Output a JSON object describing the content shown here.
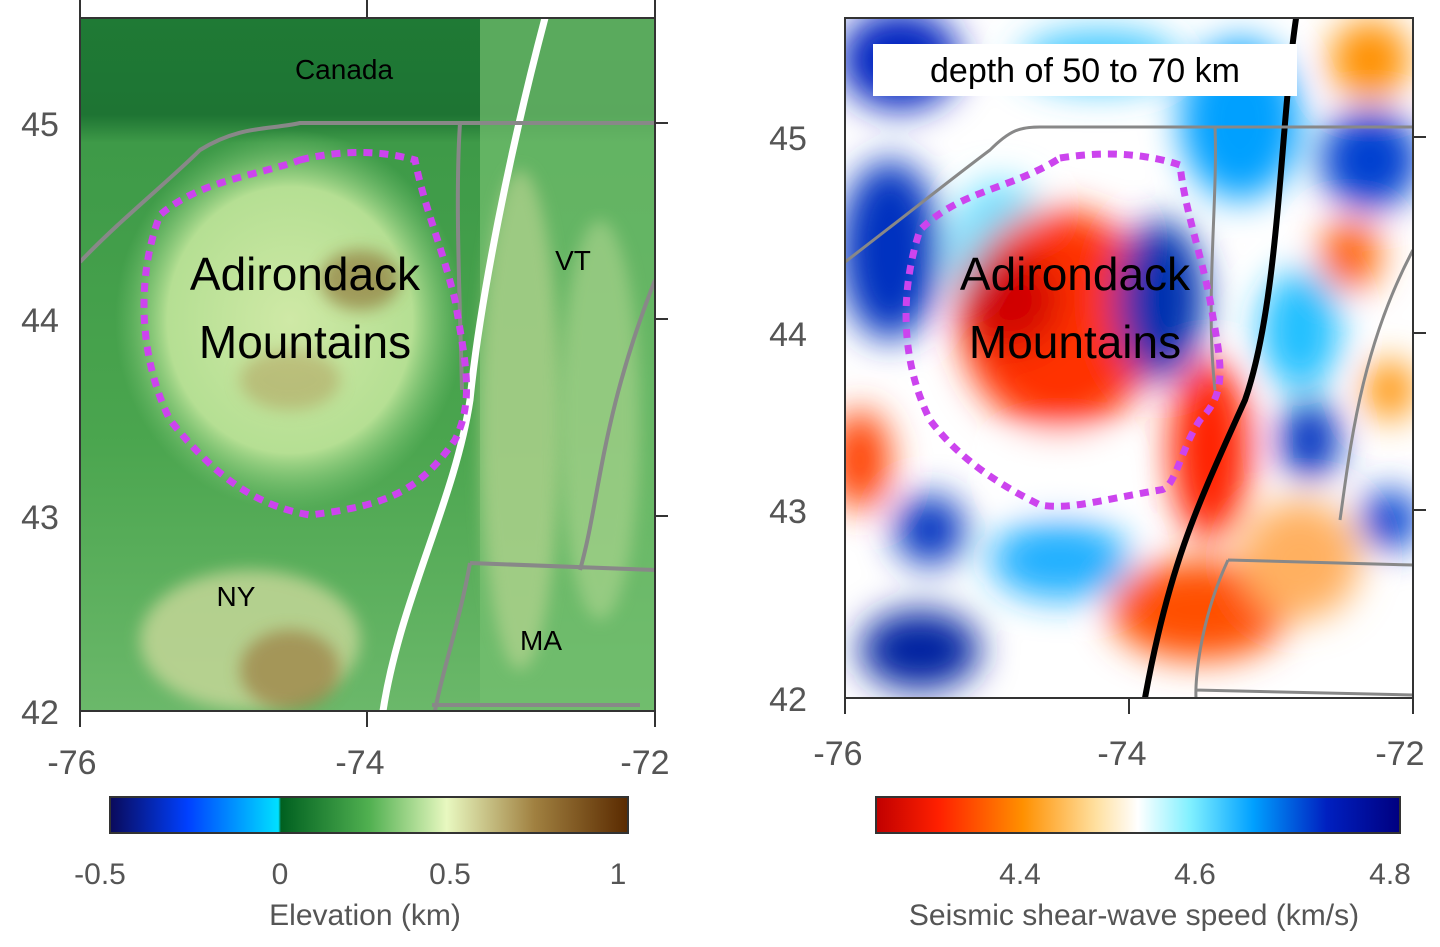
{
  "left_panel": {
    "type": "elevation map",
    "region_labels": {
      "canada": "Canada",
      "vt": "VT",
      "ny": "NY",
      "ma": "MA"
    },
    "feature_label_line1": "Adirondack",
    "feature_label_line2": "Mountains",
    "y_ticks": [
      "45",
      "44",
      "43",
      "42"
    ],
    "x_ticks": [
      "-76",
      "-74",
      "-72"
    ],
    "colorbar": {
      "label": "Elevation (km)",
      "ticks": [
        "-0.5",
        "0",
        "0.5",
        "1"
      ],
      "range": [
        -0.5,
        1.03
      ],
      "colors": [
        "#0a0a5a",
        "#0050ff",
        "#00e0ff",
        "#006020",
        "#40a040",
        "#e8f8c0",
        "#a08040",
        "#5a2a00"
      ]
    },
    "line_color": "#ffffff",
    "outline_color": "#cc44ee",
    "border_color": "#808080"
  },
  "right_panel": {
    "type": "seismic velocity map",
    "depth_label": "depth of 50 to 70 km",
    "feature_label_line1": "Adirondack",
    "feature_label_line2": "Mountains",
    "y_ticks": [
      "45",
      "44",
      "43",
      "42"
    ],
    "x_ticks": [
      "-76",
      "-74",
      "-72"
    ],
    "colorbar": {
      "label": "Seismic shear-wave speed (km/s)",
      "ticks": [
        "4.4",
        "4.6",
        "4.8"
      ],
      "range": [
        4.3,
        4.8
      ],
      "colors": [
        "#c00000",
        "#ff2000",
        "#ff9000",
        "#ffe0a0",
        "#ffffff",
        "#80f0ff",
        "#00a0ff",
        "#0020c0",
        "#000080"
      ]
    },
    "line_color": "#000000",
    "outline_color": "#cc44ee",
    "border_color": "#808080"
  }
}
